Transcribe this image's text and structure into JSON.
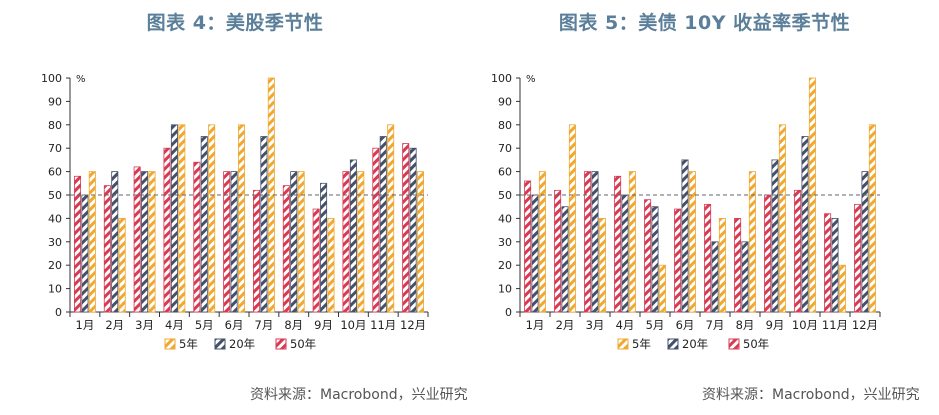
{
  "figures": [
    {
      "title": "图表  4：美股季节性",
      "source": "资料来源：Macrobond，兴业研究"
    },
    {
      "title": "图表  5：美债 10Y 收益率季节性",
      "source": "资料来源：Macrobond，兴业研究"
    }
  ],
  "colors": {
    "5年": "#f0a830",
    "20年": "#45506a",
    "50年": "#d83a52",
    "refline": "#666666"
  },
  "chart_data": [
    {
      "type": "bar",
      "title": "",
      "unit_label": "%",
      "ylim": [
        0,
        100
      ],
      "yticks": [
        0,
        10,
        20,
        30,
        40,
        50,
        60,
        70,
        80,
        90,
        100
      ],
      "reference_line": 50,
      "categories": [
        "1月",
        "2月",
        "3月",
        "4月",
        "5月",
        "6月",
        "7月",
        "8月",
        "9月",
        "10月",
        "11月",
        "12月"
      ],
      "legend": [
        "5年",
        "20年",
        "50年"
      ],
      "series": [
        {
          "name": "50年",
          "values": [
            58,
            54,
            62,
            70,
            64,
            60,
            52,
            54,
            44,
            60,
            70,
            72
          ]
        },
        {
          "name": "20年",
          "values": [
            50,
            60,
            60,
            80,
            75,
            60,
            75,
            60,
            55,
            65,
            75,
            70
          ]
        },
        {
          "name": "5年",
          "values": [
            60,
            40,
            60,
            80,
            80,
            80,
            100,
            60,
            40,
            60,
            80,
            60
          ]
        }
      ]
    },
    {
      "type": "bar",
      "title": "",
      "unit_label": "%",
      "ylim": [
        0,
        100
      ],
      "yticks": [
        0,
        10,
        20,
        30,
        40,
        50,
        60,
        70,
        80,
        90,
        100
      ],
      "reference_line": 50,
      "categories": [
        "1月",
        "2月",
        "3月",
        "4月",
        "5月",
        "6月",
        "7月",
        "8月",
        "9月",
        "10月",
        "11月",
        "12月"
      ],
      "legend": [
        "5年",
        "20年",
        "50年"
      ],
      "series": [
        {
          "name": "50年",
          "values": [
            56,
            52,
            60,
            58,
            48,
            44,
            46,
            40,
            50,
            52,
            42,
            46
          ]
        },
        {
          "name": "20年",
          "values": [
            50,
            45,
            60,
            50,
            45,
            65,
            30,
            30,
            65,
            75,
            40,
            60
          ]
        },
        {
          "name": "5年",
          "values": [
            60,
            80,
            40,
            60,
            20,
            60,
            40,
            60,
            80,
            100,
            20,
            80
          ]
        }
      ]
    }
  ]
}
